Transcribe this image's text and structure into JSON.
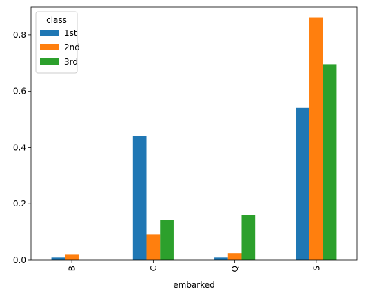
{
  "chart_data": {
    "type": "bar",
    "title": "",
    "xlabel": "embarked",
    "ylabel": "",
    "categories": [
      "B",
      "C",
      "Q",
      "S"
    ],
    "series": [
      {
        "name": "1st",
        "values": [
          0.009,
          0.441,
          0.009,
          0.541
        ],
        "color": "#1f77b4"
      },
      {
        "name": "2nd",
        "values": [
          0.021,
          0.092,
          0.024,
          0.862
        ],
        "color": "#ff7f0e"
      },
      {
        "name": "3rd",
        "values": [
          0.0,
          0.144,
          0.159,
          0.696
        ],
        "color": "#2ca02c"
      }
    ],
    "ylim": [
      0,
      0.9
    ],
    "yticks": [
      0.0,
      0.2,
      0.4,
      0.6,
      0.8
    ],
    "ytick_labels": [
      "0.0",
      "0.2",
      "0.4",
      "0.6",
      "0.8"
    ],
    "grid": false,
    "legend": {
      "title": "class",
      "position": "top-left"
    }
  }
}
